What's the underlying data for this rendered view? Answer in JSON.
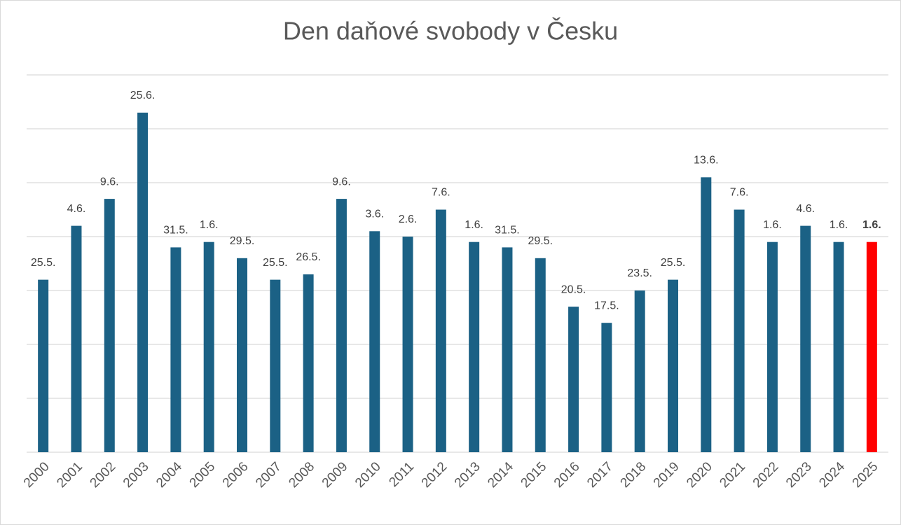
{
  "chart_data": {
    "type": "bar",
    "title": "Den daňové svobody v Česku",
    "categories": [
      "2000",
      "2001",
      "2002",
      "2003",
      "2004",
      "2005",
      "2006",
      "2007",
      "2008",
      "2009",
      "2010",
      "2011",
      "2012",
      "2013",
      "2014",
      "2015",
      "2016",
      "2017",
      "2018",
      "2019",
      "2020",
      "2021",
      "2022",
      "2023",
      "2024",
      "2025"
    ],
    "values": [
      145,
      155,
      160,
      176,
      151,
      152,
      149,
      145,
      146,
      160,
      154,
      153,
      158,
      152,
      151,
      149,
      140,
      137,
      143,
      145,
      164,
      158,
      152,
      155,
      152,
      152
    ],
    "value_labels": [
      "25.5.",
      "4.6.",
      "9.6.",
      "25.6.",
      "31.5.",
      "1.6.",
      "29.5.",
      "25.5.",
      "26.5.",
      "9.6.",
      "3.6.",
      "2.6.",
      "7.6.",
      "1.6.",
      "31.5.",
      "29.5.",
      "20.5.",
      "17.5.",
      "23.5.",
      "25.5.",
      "13.6.",
      "7.6.",
      "1.6.",
      "4.6.",
      "1.6.",
      "1.6."
    ],
    "color": "#1b6185",
    "colors": [
      "#1b6185",
      "#1b6185",
      "#1b6185",
      "#1b6185",
      "#1b6185",
      "#1b6185",
      "#1b6185",
      "#1b6185",
      "#1b6185",
      "#1b6185",
      "#1b6185",
      "#1b6185",
      "#1b6185",
      "#1b6185",
      "#1b6185",
      "#1b6185",
      "#1b6185",
      "#1b6185",
      "#1b6185",
      "#1b6185",
      "#1b6185",
      "#1b6185",
      "#1b6185",
      "#1b6185",
      "#1b6185",
      "#ff0000"
    ],
    "ylim": [
      113,
      183
    ],
    "yticks": [
      113,
      123,
      133,
      143,
      153,
      163,
      173,
      183
    ],
    "grid": true
  }
}
